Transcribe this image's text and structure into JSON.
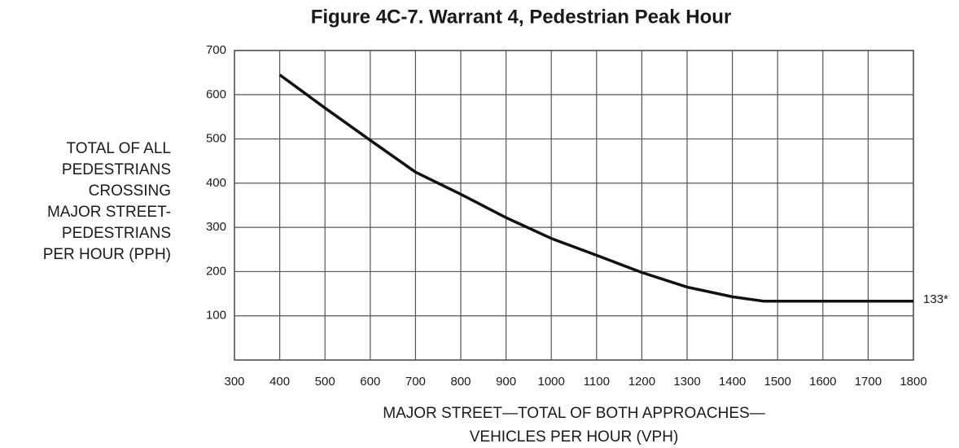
{
  "chart_data": {
    "type": "line",
    "title": "Figure 4C-7.  Warrant 4, Pedestrian Peak Hour",
    "x_label": [
      "MAJOR STREET—TOTAL OF BOTH APPROACHES—",
      "VEHICLES PER HOUR (VPH)"
    ],
    "y_label": [
      "TOTAL OF ALL",
      "PEDESTRIANS",
      "CROSSING",
      "MAJOR STREET-",
      "PEDESTRIANS",
      "PER HOUR (PPH)"
    ],
    "x": [
      400,
      500,
      600,
      700,
      800,
      900,
      1000,
      1100,
      1200,
      1300,
      1400,
      1470,
      1800
    ],
    "values": [
      645,
      570,
      497,
      425,
      375,
      322,
      275,
      237,
      198,
      165,
      143,
      133,
      133
    ],
    "color": "#111111",
    "annotation": "133*",
    "xlim": [
      300,
      1800
    ],
    "xticks": [
      300,
      400,
      500,
      600,
      700,
      800,
      900,
      1000,
      1100,
      1200,
      1300,
      1400,
      1500,
      1600,
      1700,
      1800
    ],
    "ylim": [
      0,
      700
    ],
    "yticks": [
      100,
      200,
      300,
      400,
      500,
      600,
      700
    ],
    "grid": true
  }
}
